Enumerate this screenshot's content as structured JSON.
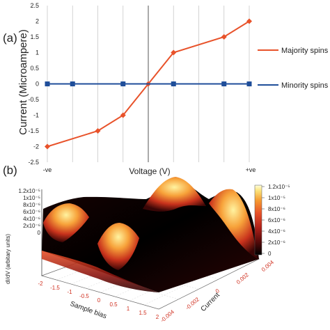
{
  "panel_a": {
    "label": "(a)",
    "chart_data": {
      "type": "line",
      "x": [
        "-ve",
        "",
        "",
        "",
        "",
        "",
        "+ve"
      ],
      "xlabel": "Voltage (V)",
      "ylabel": "Current (Microampere)",
      "ylim": [
        -2.5,
        2.5
      ],
      "yticks": [
        "2.5",
        "2",
        "1.5",
        "1",
        "0.5",
        "0",
        "-0.5",
        "-1",
        "-1.5",
        "-2",
        "-2.5"
      ],
      "xtick_left": "-ve",
      "xtick_right": "+ve",
      "grid": "vertical",
      "legend": "right",
      "series": [
        {
          "name": "Majority spins",
          "color": "#e8522a",
          "marker": "diamond",
          "points": [
            [
              -1,
              -2
            ],
            [
              -0.5,
              -1.5
            ],
            [
              -0.25,
              -1
            ],
            [
              0,
              0
            ],
            [
              0.25,
              1
            ],
            [
              0.75,
              1.5
            ],
            [
              1,
              2
            ]
          ]
        },
        {
          "name": "Minority spins",
          "color": "#1f4e9a",
          "marker": "square",
          "points": [
            [
              -1,
              0
            ],
            [
              -0.75,
              0
            ],
            [
              -0.25,
              0
            ],
            [
              0.25,
              0
            ],
            [
              0.75,
              0
            ],
            [
              1,
              0
            ]
          ]
        }
      ]
    }
  },
  "panel_b": {
    "label": "(b)",
    "chart_data": {
      "type": "surface",
      "zlabel": "dI/dV (arbitary units)",
      "xlabel": "Sample bias",
      "ylabel": "Current",
      "zticks": [
        "1.2x10⁻⁵",
        "1x10⁻⁵",
        "8x10⁻⁶",
        "6x10⁻⁶",
        "4x10⁻⁶",
        "2x10⁻⁶",
        "0"
      ],
      "xticks": [
        "-2",
        "-1.5",
        "-1",
        "-0.5",
        "0",
        "0.5",
        "1",
        "1.5",
        "2"
      ],
      "yticks": [
        "-0.004",
        "-0.002",
        "0",
        "0.002",
        "0.004"
      ],
      "colorbar_ticks": [
        "1.2x10⁻⁵",
        "1x10⁻⁵",
        "8x10⁻⁶",
        "6x10⁻⁶",
        "4x10⁻⁶",
        "2x10⁻⁶",
        "0"
      ],
      "colormap": [
        "#000000",
        "#5a0a0a",
        "#b3221a",
        "#e8522a",
        "#f59a30",
        "#fbe27a",
        "#ffffdd"
      ]
    }
  }
}
